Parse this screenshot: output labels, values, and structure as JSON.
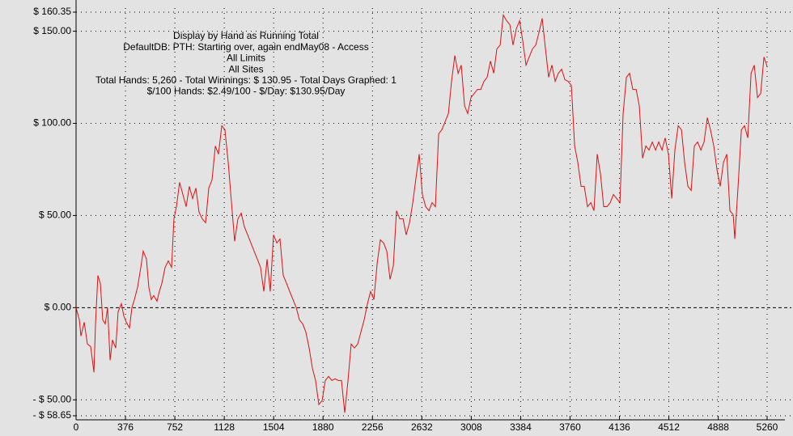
{
  "chart_data": {
    "type": "line",
    "text_lines": [
      "Display by Hand as Running Total",
      "DefaultDB: PTH: Starting over, again endMay08 - Access",
      "All Limits",
      "All Sites",
      "Total Hands: 5,260 - Total Winnings: $ 130.95 - Total Days Graphed: 1",
      "$/100 Hands: $2.49/100 - $/Day: $130.95/Day"
    ],
    "x": [
      0,
      25,
      37,
      62,
      86,
      111,
      136,
      148,
      166,
      185,
      203,
      222,
      240,
      259,
      277,
      302,
      320,
      345,
      363,
      382,
      407,
      425,
      444,
      468,
      493,
      511,
      536,
      554,
      573,
      591,
      616,
      634,
      653,
      678,
      702,
      727,
      745,
      764,
      788,
      813,
      838,
      862,
      887,
      912,
      936,
      961,
      986,
      1010,
      1035,
      1060,
      1084,
      1109,
      1133,
      1158,
      1183,
      1207,
      1232,
      1257,
      1281,
      1306,
      1331,
      1355,
      1380,
      1404,
      1429,
      1454,
      1478,
      1503,
      1528,
      1552,
      1577,
      1602,
      1626,
      1651,
      1676,
      1700,
      1725,
      1749,
      1774,
      1799,
      1823,
      1848,
      1873,
      1897,
      1922,
      1947,
      1971,
      1996,
      2020,
      2045,
      2070,
      2094,
      2119,
      2144,
      2168,
      2193,
      2218,
      2242,
      2267,
      2292,
      2316,
      2341,
      2365,
      2390,
      2415,
      2439,
      2464,
      2489,
      2513,
      2538,
      2563,
      2587,
      2612,
      2636,
      2661,
      2686,
      2710,
      2735,
      2760,
      2784,
      2809,
      2834,
      2858,
      2883,
      2908,
      2932,
      2957,
      2981,
      3006,
      3031,
      3055,
      3080,
      3105,
      3129,
      3154,
      3179,
      3203,
      3228,
      3252,
      3277,
      3302,
      3326,
      3351,
      3376,
      3400,
      3425,
      3449,
      3474,
      3499,
      3523,
      3548,
      3573,
      3597,
      3622,
      3647,
      3671,
      3696,
      3721,
      3745,
      3770,
      3795,
      3819,
      3844,
      3868,
      3893,
      3918,
      3942,
      3967,
      3992,
      4016,
      4041,
      4066,
      4090,
      4115,
      4140,
      4164,
      4189,
      4213,
      4238,
      4263,
      4287,
      4312,
      4337,
      4361,
      4386,
      4411,
      4435,
      4460,
      4484,
      4509,
      4534,
      4558,
      4583,
      4608,
      4632,
      4657,
      4682,
      4706,
      4731,
      4756,
      4780,
      4805,
      4829,
      4854,
      4879,
      4903,
      4928,
      4953,
      4977,
      5002,
      5014,
      5039,
      5064,
      5088,
      5113,
      5138,
      5162,
      5187,
      5211,
      5236,
      5260
    ],
    "series": [
      {
        "color": "#e01010",
        "values": [
          0,
          -6.6,
          -15.4,
          -7.9,
          -19.7,
          -21.1,
          -35.1,
          -8.8,
          17.5,
          13.2,
          -6.6,
          -8.8,
          0,
          -28.5,
          -17.5,
          -21.9,
          -2.2,
          2.2,
          -4.4,
          -7.9,
          -11.0,
          0,
          4.4,
          11.0,
          21.9,
          30.7,
          26.3,
          11.0,
          4.4,
          6.6,
          3.5,
          8.8,
          13.2,
          21.9,
          25.4,
          21.9,
          48.2,
          54.8,
          68.0,
          61.4,
          54.8,
          65.8,
          59.2,
          64.9,
          51.8,
          48.2,
          46.1,
          64.9,
          69.3,
          87.7,
          83.3,
          98.7,
          96.5,
          78.9,
          57.0,
          36.0,
          48.2,
          51.3,
          43.9,
          39.5,
          35.1,
          30.7,
          26.3,
          21.9,
          8.8,
          26.3,
          8.8,
          39.5,
          35.1,
          37.3,
          17.5,
          13.2,
          8.8,
          4.4,
          0,
          -6.6,
          -8.8,
          -13.2,
          -21.9,
          -32.9,
          -39.5,
          -52.6,
          -50.4,
          -39.5,
          -37.3,
          -39.5,
          -38.6,
          -39.5,
          -39.5,
          -57.0,
          -39.5,
          -19.7,
          -21.9,
          -19.7,
          -13.2,
          -6.6,
          2.2,
          8.8,
          4.4,
          24.1,
          36.8,
          35.1,
          30.7,
          15.4,
          22.8,
          52.6,
          48.2,
          48.2,
          39.5,
          46.1,
          57.0,
          70.2,
          83.3,
          61.4,
          54.8,
          52.6,
          57.0,
          54.8,
          94.3,
          96.5,
          100.9,
          105.3,
          122.8,
          136.8,
          127.2,
          131.6,
          109.6,
          105.3,
          114.0,
          116.2,
          118.4,
          118.4,
          122.8,
          125.0,
          133.8,
          127.2,
          140.4,
          142.5,
          158.8,
          155.7,
          153.5,
          142.5,
          151.3,
          155.7,
          144.7,
          131.6,
          136.0,
          140.4,
          142.5,
          149.1,
          157.0,
          140.4,
          125.0,
          131.6,
          122.8,
          127.2,
          129.4,
          123.7,
          122.8,
          120.6,
          87.7,
          78.9,
          65.8,
          65.8,
          54.8,
          57.0,
          52.6,
          83.3,
          72.4,
          54.8,
          54.8,
          57.0,
          61.4,
          59.2,
          57.0,
          105.3,
          125.0,
          127.2,
          118.4,
          118.4,
          109.6,
          81.1,
          87.7,
          85.5,
          89.9,
          85.5,
          89.9,
          85.5,
          92.1,
          83.3,
          59.2,
          85.5,
          98.7,
          96.5,
          78.9,
          65.8,
          63.6,
          87.7,
          89.9,
          85.5,
          89.9,
          103.1,
          96.5,
          87.7,
          74.6,
          65.8,
          78.9,
          83.3,
          52.6,
          50.4,
          37.3,
          65.8,
          96.5,
          98.7,
          92.1,
          127.2,
          131.6,
          114.0,
          116.2,
          136.0,
          130.95
        ]
      }
    ],
    "xlim": [
      0,
      5260
    ],
    "xticks": [
      0,
      376,
      752,
      1128,
      1504,
      1880,
      2256,
      2632,
      3008,
      3384,
      3760,
      4136,
      4512,
      4888,
      5260
    ],
    "ylim": [
      -58.65,
      160.35
    ],
    "yticks": [
      {
        "value": -58.65,
        "label": "- $ 58.65"
      },
      {
        "value": -50,
        "label": "- $ 50.00"
      },
      {
        "value": 0,
        "label": "$ 0.00"
      },
      {
        "value": 50,
        "label": "$ 50.00"
      },
      {
        "value": 100,
        "label": "$ 100.00"
      },
      {
        "value": 150,
        "label": "$ 150.00"
      },
      {
        "value": 160.35,
        "label": "$ 160.35"
      }
    ],
    "grid": true
  }
}
